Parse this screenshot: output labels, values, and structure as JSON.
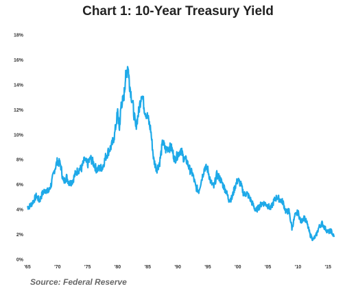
{
  "chart_data": {
    "type": "line",
    "title": "Chart 1: 10-Year Treasury Yield",
    "source": "Source: Federal Reserve",
    "xlabel": "",
    "ylabel": "",
    "xlim": [
      1965,
      2016
    ],
    "ylim": [
      0,
      18
    ],
    "grid": false,
    "x_tick_labels": [
      "'65",
      "'70",
      "'75",
      "'80",
      "'85",
      "'90",
      "'95",
      "'00",
      "'05",
      "'10",
      "'15"
    ],
    "x_tick_values": [
      1965,
      1970,
      1975,
      1980,
      1985,
      1990,
      1995,
      2000,
      2005,
      2010,
      2015
    ],
    "y_tick_labels": [
      "0%",
      "2%",
      "4%",
      "6%",
      "8%",
      "10%",
      "12%",
      "14%",
      "16%",
      "18%"
    ],
    "y_tick_values": [
      0,
      2,
      4,
      6,
      8,
      10,
      12,
      14,
      16,
      18
    ],
    "series": [
      {
        "color": "#1ea9e8",
        "x": [
          1965.0,
          1965.5,
          1966.0,
          1966.5,
          1967.0,
          1967.5,
          1968.0,
          1968.5,
          1969.0,
          1969.5,
          1970.0,
          1970.5,
          1971.0,
          1971.5,
          1972.0,
          1972.5,
          1973.0,
          1973.5,
          1974.0,
          1974.5,
          1975.0,
          1975.5,
          1976.0,
          1976.5,
          1977.0,
          1977.5,
          1978.0,
          1978.5,
          1979.0,
          1979.5,
          1980.0,
          1980.3,
          1980.6,
          1981.0,
          1981.3,
          1981.7,
          1982.0,
          1982.5,
          1983.0,
          1983.5,
          1984.0,
          1984.5,
          1985.0,
          1985.5,
          1986.0,
          1986.5,
          1987.0,
          1987.5,
          1988.0,
          1988.5,
          1989.0,
          1989.5,
          1990.0,
          1990.5,
          1991.0,
          1991.5,
          1992.0,
          1992.5,
          1993.0,
          1993.5,
          1994.0,
          1994.5,
          1995.0,
          1995.5,
          1996.0,
          1996.5,
          1997.0,
          1997.5,
          1998.0,
          1998.5,
          1999.0,
          1999.5,
          2000.0,
          2000.5,
          2001.0,
          2001.5,
          2002.0,
          2002.5,
          2003.0,
          2003.5,
          2004.0,
          2004.5,
          2005.0,
          2005.5,
          2006.0,
          2006.5,
          2007.0,
          2007.5,
          2008.0,
          2008.5,
          2009.0,
          2009.5,
          2010.0,
          2010.5,
          2011.0,
          2011.5,
          2012.0,
          2012.5,
          2013.0,
          2013.5,
          2014.0,
          2014.5,
          2015.0,
          2015.5,
          2016.0
        ],
        "values": [
          4.2,
          4.3,
          4.7,
          5.1,
          4.7,
          5.3,
          5.6,
          5.4,
          6.1,
          7.2,
          7.9,
          7.6,
          6.2,
          6.6,
          6.1,
          6.3,
          6.9,
          7.2,
          7.3,
          8.0,
          7.6,
          8.1,
          7.7,
          7.2,
          7.3,
          7.4,
          8.2,
          8.7,
          9.1,
          10.0,
          11.8,
          10.5,
          12.5,
          12.8,
          14.5,
          15.6,
          14.0,
          12.5,
          10.6,
          11.8,
          13.4,
          12.0,
          11.4,
          10.4,
          8.0,
          7.2,
          7.8,
          9.4,
          8.8,
          9.0,
          8.9,
          8.0,
          8.4,
          8.8,
          8.1,
          7.9,
          7.2,
          6.8,
          5.8,
          5.5,
          6.5,
          7.4,
          7.2,
          6.2,
          5.8,
          6.8,
          6.5,
          6.0,
          5.5,
          4.8,
          4.9,
          5.8,
          6.4,
          6.0,
          5.2,
          5.3,
          4.9,
          4.4,
          3.9,
          4.2,
          4.5,
          4.5,
          4.3,
          4.1,
          4.7,
          5.0,
          4.8,
          4.6,
          3.8,
          3.9,
          2.5,
          3.5,
          3.8,
          3.0,
          3.4,
          2.9,
          2.0,
          1.6,
          1.9,
          2.6,
          2.9,
          2.5,
          2.2,
          2.3,
          1.8
        ]
      }
    ]
  }
}
